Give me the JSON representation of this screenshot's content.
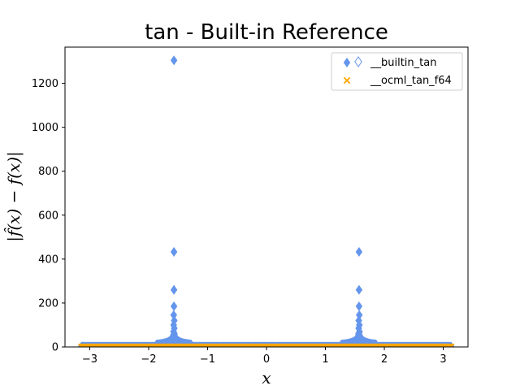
{
  "chart_data": {
    "type": "scatter",
    "title": "tan - Built-in Reference",
    "xlabel": "x",
    "ylabel": "|f̂(x) − f(x)|",
    "xlim": [
      -3.42,
      3.42
    ],
    "ylim": [
      0,
      1365
    ],
    "xticks": [
      -3,
      -2,
      -1,
      0,
      1,
      2,
      3
    ],
    "yticks": [
      0,
      200,
      400,
      600,
      800,
      1000,
      1200
    ],
    "grid": false,
    "legend_position": "top-right",
    "series": [
      {
        "name": "__builtin_tan",
        "marker": "diamond",
        "color": "#6495ED",
        "points": [
          [
            -1.5708,
            1305
          ],
          [
            -1.5708,
            433
          ],
          [
            -1.5708,
            260
          ],
          [
            -1.5708,
            185
          ],
          [
            -1.575,
            145
          ],
          [
            -1.566,
            120
          ],
          [
            -1.576,
            100
          ],
          [
            -1.565,
            85
          ],
          [
            -1.578,
            70
          ],
          [
            -1.563,
            60
          ],
          [
            -1.58,
            50
          ],
          [
            -1.561,
            42
          ],
          [
            -1.583,
            35
          ],
          [
            -1.558,
            30
          ],
          [
            -1.587,
            25
          ],
          [
            -1.554,
            20
          ],
          [
            -1.6,
            15
          ],
          [
            -1.54,
            12
          ],
          [
            -1.65,
            9
          ],
          [
            -1.49,
            8
          ],
          [
            1.5708,
            433
          ],
          [
            1.5708,
            260
          ],
          [
            1.5708,
            185
          ],
          [
            1.575,
            145
          ],
          [
            1.566,
            120
          ],
          [
            1.576,
            100
          ],
          [
            1.565,
            85
          ],
          [
            1.578,
            70
          ],
          [
            1.563,
            60
          ],
          [
            1.58,
            50
          ],
          [
            1.561,
            42
          ],
          [
            1.583,
            35
          ],
          [
            1.558,
            30
          ],
          [
            1.587,
            25
          ],
          [
            1.554,
            20
          ],
          [
            1.6,
            15
          ],
          [
            1.54,
            12
          ],
          [
            1.65,
            9
          ],
          [
            1.49,
            8
          ]
        ]
      },
      {
        "name": "__ocml_tan_f64",
        "marker": "x",
        "color": "#FFA500",
        "x_range": [
          -3.14159,
          3.14159
        ],
        "y_value": 0
      }
    ]
  }
}
